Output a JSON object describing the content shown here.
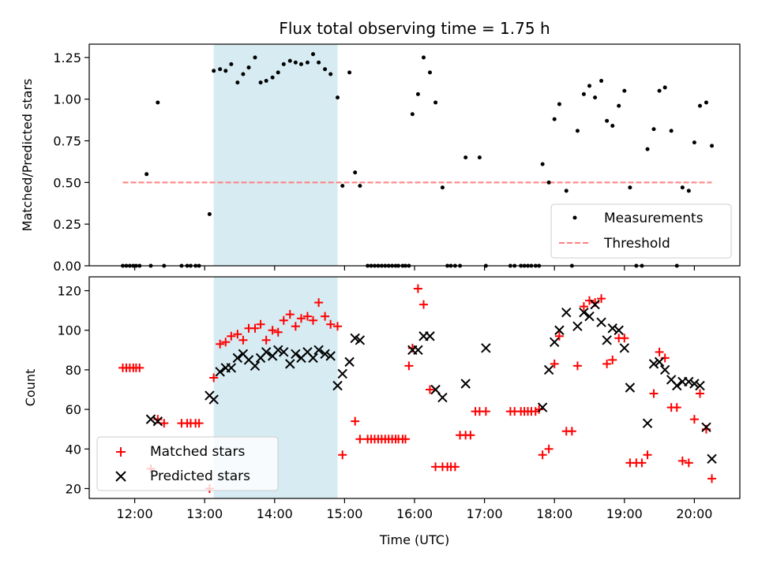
{
  "title": "Flux total observing time = 1.75 h",
  "colors": {
    "threshold": "#ff7f7f",
    "shade": "#add8e6",
    "matched": "#ff0000",
    "predicted": "#000000",
    "measurement": "#000000"
  },
  "chart_data": [
    {
      "type": "scatter",
      "ylabel": "Matched/Predicted stars",
      "xlabel": "",
      "xlim": [
        11.35,
        20.65
      ],
      "ylim": [
        0,
        1.33
      ],
      "yticks": [
        0,
        0.25,
        0.5,
        0.75,
        1.0,
        1.25
      ],
      "ytick_labels": [
        "0.00",
        "0.25",
        "0.50",
        "0.75",
        "1.00",
        "1.25"
      ],
      "shaded_span": [
        13.13,
        14.9
      ],
      "threshold": {
        "value": 0.5,
        "x_range": [
          11.83,
          20.25
        ],
        "label": "Threshold"
      },
      "legend": {
        "position": "lower-right",
        "entries": [
          "Measurements",
          "Threshold"
        ]
      },
      "series": [
        {
          "name": "Measurements",
          "marker": "dot",
          "x": [
            11.83,
            11.88,
            11.93,
            11.98,
            12.02,
            12.07,
            12.17,
            12.23,
            12.33,
            12.42,
            12.67,
            12.75,
            12.8,
            12.87,
            12.92,
            13.07,
            13.13,
            13.22,
            13.3,
            13.38,
            13.47,
            13.55,
            13.63,
            13.72,
            13.8,
            13.88,
            13.97,
            14.05,
            14.13,
            14.22,
            14.3,
            14.38,
            14.47,
            14.55,
            14.63,
            14.72,
            14.8,
            14.9,
            14.97,
            15.07,
            15.15,
            15.22,
            15.33,
            15.38,
            15.43,
            15.48,
            15.53,
            15.58,
            15.63,
            15.68,
            15.73,
            15.77,
            15.83,
            15.87,
            15.92,
            15.97,
            16.05,
            16.13,
            16.22,
            16.3,
            16.4,
            16.47,
            16.52,
            16.58,
            16.65,
            16.73,
            16.93,
            17.02,
            17.37,
            17.43,
            17.52,
            17.57,
            17.62,
            17.67,
            17.73,
            17.78,
            17.83,
            17.92,
            18.0,
            18.07,
            18.17,
            18.25,
            18.33,
            18.42,
            18.5,
            18.58,
            18.67,
            18.75,
            18.83,
            18.92,
            19.0,
            19.08,
            19.17,
            19.25,
            19.33,
            19.42,
            19.5,
            19.58,
            19.67,
            19.75,
            19.83,
            19.92,
            20.0,
            20.08,
            20.17,
            20.25
          ],
          "y": [
            0,
            0,
            0,
            0,
            0,
            0,
            0.55,
            0,
            0.98,
            0,
            0,
            0,
            0,
            0,
            0,
            0.31,
            1.17,
            1.18,
            1.17,
            1.21,
            1.1,
            1.15,
            1.19,
            1.25,
            1.1,
            1.11,
            1.13,
            1.16,
            1.21,
            1.23,
            1.22,
            1.21,
            1.22,
            1.27,
            1.22,
            1.18,
            1.15,
            1.01,
            0.48,
            1.16,
            0.56,
            0.48,
            0,
            0,
            0,
            0,
            0,
            0,
            0,
            0,
            0,
            0,
            0,
            0,
            0,
            0.91,
            1.03,
            1.25,
            1.16,
            0.98,
            0.47,
            0,
            0,
            0,
            0,
            0.65,
            0.65,
            0,
            0,
            0,
            0,
            0,
            0,
            0,
            0,
            0,
            0.61,
            0.5,
            0.88,
            0.97,
            0.45,
            0,
            0.81,
            1.03,
            1.08,
            1.01,
            1.11,
            0.87,
            0.84,
            0.96,
            1.05,
            0.47,
            0,
            0,
            0.7,
            0.82,
            1.05,
            1.07,
            0.81,
            0,
            0.47,
            0.45,
            0.74,
            0.96,
            0.98,
            0.72
          ]
        }
      ]
    },
    {
      "type": "scatter",
      "ylabel": "Count",
      "xlabel": "Time (UTC)",
      "xlim": [
        11.35,
        20.65
      ],
      "ylim": [
        15,
        127
      ],
      "yticks": [
        20,
        40,
        60,
        80,
        100,
        120
      ],
      "ytick_labels": [
        "20",
        "40",
        "60",
        "80",
        "100",
        "120"
      ],
      "xticks": [
        12,
        13,
        14,
        15,
        16,
        17,
        18,
        19,
        20
      ],
      "xtick_labels": [
        "12:00",
        "13:00",
        "14:00",
        "15:00",
        "16:00",
        "17:00",
        "18:00",
        "19:00",
        "20:00"
      ],
      "shaded_span": [
        13.13,
        14.9
      ],
      "legend": {
        "position": "lower-left",
        "entries": [
          "Matched stars",
          "Predicted stars"
        ]
      },
      "series": [
        {
          "name": "Matched stars",
          "marker": "plus",
          "x": [
            11.83,
            11.88,
            11.93,
            11.98,
            12.02,
            12.07,
            12.23,
            12.33,
            12.42,
            12.67,
            12.75,
            12.8,
            12.87,
            12.92,
            13.07,
            13.13,
            13.22,
            13.3,
            13.38,
            13.47,
            13.55,
            13.63,
            13.72,
            13.8,
            13.88,
            13.97,
            14.05,
            14.13,
            14.22,
            14.3,
            14.38,
            14.47,
            14.55,
            14.63,
            14.72,
            14.8,
            14.9,
            14.97,
            15.15,
            15.22,
            15.33,
            15.38,
            15.43,
            15.48,
            15.53,
            15.58,
            15.63,
            15.68,
            15.73,
            15.77,
            15.83,
            15.87,
            15.92,
            15.97,
            16.05,
            16.13,
            16.22,
            16.3,
            16.4,
            16.47,
            16.52,
            16.58,
            16.65,
            16.73,
            16.8,
            16.87,
            16.93,
            17.02,
            17.37,
            17.43,
            17.52,
            17.57,
            17.62,
            17.67,
            17.73,
            17.78,
            17.83,
            17.92,
            18.0,
            18.07,
            18.17,
            18.25,
            18.33,
            18.42,
            18.5,
            18.58,
            18.67,
            18.75,
            18.83,
            18.92,
            19.0,
            19.08,
            19.17,
            19.25,
            19.33,
            19.42,
            19.5,
            19.58,
            19.67,
            19.75,
            19.83,
            19.92,
            20.0,
            20.08,
            20.17,
            20.25
          ],
          "y": [
            81,
            81,
            81,
            81,
            81,
            81,
            30,
            55,
            53,
            53,
            53,
            53,
            53,
            53,
            20,
            76,
            93,
            94,
            97,
            98,
            95,
            101,
            101,
            103,
            95,
            100,
            99,
            105,
            108,
            102,
            106,
            107,
            105,
            114,
            107,
            103,
            102,
            37,
            54,
            45,
            45,
            45,
            45,
            45,
            45,
            45,
            45,
            45,
            45,
            45,
            45,
            45,
            82,
            91,
            121,
            113,
            70,
            31,
            31,
            31,
            31,
            31,
            47,
            47,
            47,
            59,
            59,
            59,
            59,
            59,
            59,
            59,
            59,
            59,
            59,
            60,
            37,
            40,
            83,
            97,
            49,
            49,
            82,
            112,
            115,
            114,
            116,
            83,
            85,
            96,
            96,
            33,
            33,
            33,
            37,
            68,
            89,
            86,
            61,
            61,
            34,
            33,
            55,
            68,
            50,
            25
          ]
        },
        {
          "name": "Predicted stars",
          "marker": "x",
          "x": [
            12.23,
            12.33,
            13.07,
            13.13,
            13.22,
            13.3,
            13.38,
            13.47,
            13.55,
            13.63,
            13.72,
            13.8,
            13.88,
            13.97,
            14.05,
            14.13,
            14.22,
            14.3,
            14.38,
            14.47,
            14.55,
            14.63,
            14.72,
            14.8,
            14.9,
            14.97,
            15.07,
            15.15,
            15.22,
            15.97,
            16.05,
            16.13,
            16.22,
            16.3,
            16.4,
            16.73,
            17.02,
            17.83,
            17.92,
            18.0,
            18.07,
            18.17,
            18.33,
            18.42,
            18.5,
            18.58,
            18.67,
            18.75,
            18.83,
            18.92,
            19.0,
            19.08,
            19.33,
            19.42,
            19.5,
            19.58,
            19.67,
            19.75,
            19.83,
            19.92,
            20.0,
            20.08,
            20.17,
            20.25
          ],
          "y": [
            55,
            54,
            67,
            65,
            79,
            81,
            81,
            86,
            88,
            85,
            82,
            86,
            89,
            87,
            90,
            89,
            83,
            88,
            86,
            89,
            86,
            90,
            88,
            87,
            72,
            78,
            84,
            96,
            95,
            90,
            90,
            97,
            97,
            70,
            66,
            73,
            91,
            61,
            80,
            94,
            100,
            109,
            102,
            109,
            107,
            113,
            104,
            95,
            101,
            100,
            91,
            71,
            53,
            83,
            84,
            80,
            75,
            72,
            74,
            74,
            73,
            72,
            51,
            35
          ]
        }
      ]
    }
  ]
}
